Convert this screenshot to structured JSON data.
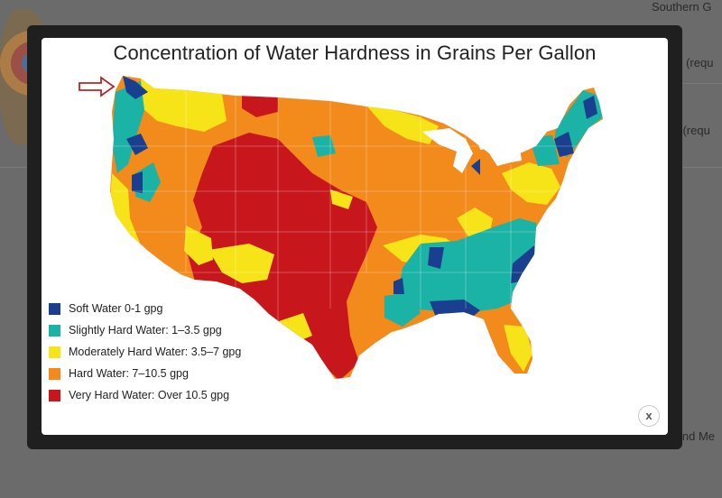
{
  "background": {
    "texts": [
      "Southern G",
      "ne (requ",
      "ut (requ",
      "Send Me"
    ]
  },
  "lightbox": {
    "title": "Concentration of Water Hardness in Grains Per Gallon",
    "close_label": "x",
    "legend": [
      {
        "label": "Soft Water 0-1 gpg",
        "color": "#1a3f8f"
      },
      {
        "label": "Slightly Hard Water: 1–3.5 gpg",
        "color": "#1bb3a6"
      },
      {
        "label": "Moderately Hard Water: 3.5–7 gpg",
        "color": "#f7e418"
      },
      {
        "label": "Hard Water: 7–10.5 gpg",
        "color": "#f28a1c"
      },
      {
        "label": "Very Hard Water: Over 10.5 gpg",
        "color": "#c8161d"
      }
    ]
  }
}
